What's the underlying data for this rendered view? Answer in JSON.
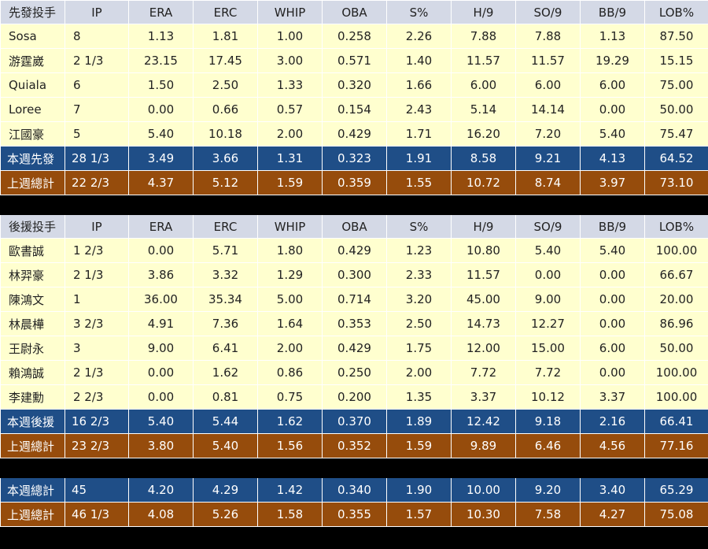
{
  "columns": [
    "IP",
    "ERA",
    "ERC",
    "WHIP",
    "OBA",
    "S%",
    "H/9",
    "SO/9",
    "BB/9",
    "LOB%"
  ],
  "starters": {
    "header": "先發投手",
    "rows": [
      {
        "name": "Sosa",
        "ip": "8",
        "era": "1.13",
        "erc": "1.81",
        "whip": "1.00",
        "oba": "0.258",
        "s": "2.26",
        "h9": "7.88",
        "so9": "7.88",
        "bb9": "1.13",
        "lob": "87.50"
      },
      {
        "name": "游霆崴",
        "ip": "2 1/3",
        "era": "23.15",
        "erc": "17.45",
        "whip": "3.00",
        "oba": "0.571",
        "s": "1.40",
        "h9": "11.57",
        "so9": "11.57",
        "bb9": "19.29",
        "lob": "15.15"
      },
      {
        "name": "Quiala",
        "ip": "6",
        "era": "1.50",
        "erc": "2.50",
        "whip": "1.33",
        "oba": "0.320",
        "s": "1.66",
        "h9": "6.00",
        "so9": "6.00",
        "bb9": "6.00",
        "lob": "75.00"
      },
      {
        "name": "Loree",
        "ip": "7",
        "era": "0.00",
        "erc": "0.66",
        "whip": "0.57",
        "oba": "0.154",
        "s": "2.43",
        "h9": "5.14",
        "so9": "14.14",
        "bb9": "0.00",
        "lob": "50.00"
      },
      {
        "name": "江國豪",
        "ip": "5",
        "era": "5.40",
        "erc": "10.18",
        "whip": "2.00",
        "oba": "0.429",
        "s": "1.71",
        "h9": "16.20",
        "so9": "7.20",
        "bb9": "5.40",
        "lob": "75.47"
      }
    ],
    "this_week": {
      "name": "本週先發",
      "ip": "28 1/3",
      "era": "3.49",
      "erc": "3.66",
      "whip": "1.31",
      "oba": "0.323",
      "s": "1.91",
      "h9": "8.58",
      "so9": "9.21",
      "bb9": "4.13",
      "lob": "64.52"
    },
    "last_week": {
      "name": "上週總計",
      "ip": "22 2/3",
      "era": "4.37",
      "erc": "5.12",
      "whip": "1.59",
      "oba": "0.359",
      "s": "1.55",
      "h9": "10.72",
      "so9": "8.74",
      "bb9": "3.97",
      "lob": "73.10"
    }
  },
  "relievers": {
    "header": "後援投手",
    "rows": [
      {
        "name": "歐書誠",
        "ip": "1 2/3",
        "era": "0.00",
        "erc": "5.71",
        "whip": "1.80",
        "oba": "0.429",
        "s": "1.23",
        "h9": "10.80",
        "so9": "5.40",
        "bb9": "5.40",
        "lob": "100.00"
      },
      {
        "name": "林羿豪",
        "ip": "2 1/3",
        "era": "3.86",
        "erc": "3.32",
        "whip": "1.29",
        "oba": "0.300",
        "s": "2.33",
        "h9": "11.57",
        "so9": "0.00",
        "bb9": "0.00",
        "lob": "66.67"
      },
      {
        "name": "陳鴻文",
        "ip": "1",
        "era": "36.00",
        "erc": "35.34",
        "whip": "5.00",
        "oba": "0.714",
        "s": "3.20",
        "h9": "45.00",
        "so9": "9.00",
        "bb9": "0.00",
        "lob": "20.00"
      },
      {
        "name": "林晨樺",
        "ip": "3 2/3",
        "era": "4.91",
        "erc": "7.36",
        "whip": "1.64",
        "oba": "0.353",
        "s": "2.50",
        "h9": "14.73",
        "so9": "12.27",
        "bb9": "0.00",
        "lob": "86.96"
      },
      {
        "name": "王尉永",
        "ip": "3",
        "era": "9.00",
        "erc": "6.41",
        "whip": "2.00",
        "oba": "0.429",
        "s": "1.75",
        "h9": "12.00",
        "so9": "15.00",
        "bb9": "6.00",
        "lob": "50.00"
      },
      {
        "name": "賴鴻誠",
        "ip": "2 1/3",
        "era": "0.00",
        "erc": "1.62",
        "whip": "0.86",
        "oba": "0.250",
        "s": "2.00",
        "h9": "7.72",
        "so9": "7.72",
        "bb9": "0.00",
        "lob": "100.00"
      },
      {
        "name": "李建勳",
        "ip": "2 2/3",
        "era": "0.00",
        "erc": "0.81",
        "whip": "0.75",
        "oba": "0.200",
        "s": "1.35",
        "h9": "3.37",
        "so9": "10.12",
        "bb9": "3.37",
        "lob": "100.00"
      }
    ],
    "this_week": {
      "name": "本週後援",
      "ip": "16 2/3",
      "era": "5.40",
      "erc": "5.44",
      "whip": "1.62",
      "oba": "0.370",
      "s": "1.89",
      "h9": "12.42",
      "so9": "9.18",
      "bb9": "2.16",
      "lob": "66.41"
    },
    "last_week": {
      "name": "上週總計",
      "ip": "23 2/3",
      "era": "3.80",
      "erc": "5.40",
      "whip": "1.56",
      "oba": "0.352",
      "s": "1.59",
      "h9": "9.89",
      "so9": "6.46",
      "bb9": "4.56",
      "lob": "77.16"
    }
  },
  "totals": {
    "this_week": {
      "name": "本週總計",
      "ip": "45",
      "era": "4.20",
      "erc": "4.29",
      "whip": "1.42",
      "oba": "0.340",
      "s": "1.90",
      "h9": "10.00",
      "so9": "9.20",
      "bb9": "3.40",
      "lob": "65.29"
    },
    "last_week": {
      "name": "上週總計",
      "ip": "46 1/3",
      "era": "4.08",
      "erc": "5.26",
      "whip": "1.58",
      "oba": "0.355",
      "s": "1.57",
      "h9": "10.30",
      "so9": "7.58",
      "bb9": "4.27",
      "lob": "75.08"
    }
  },
  "colors": {
    "header_bg": "#d4d9e6",
    "row_bg": "#ffffcf",
    "blue_summary": "#1f4e87",
    "brown_summary": "#964c0c"
  }
}
